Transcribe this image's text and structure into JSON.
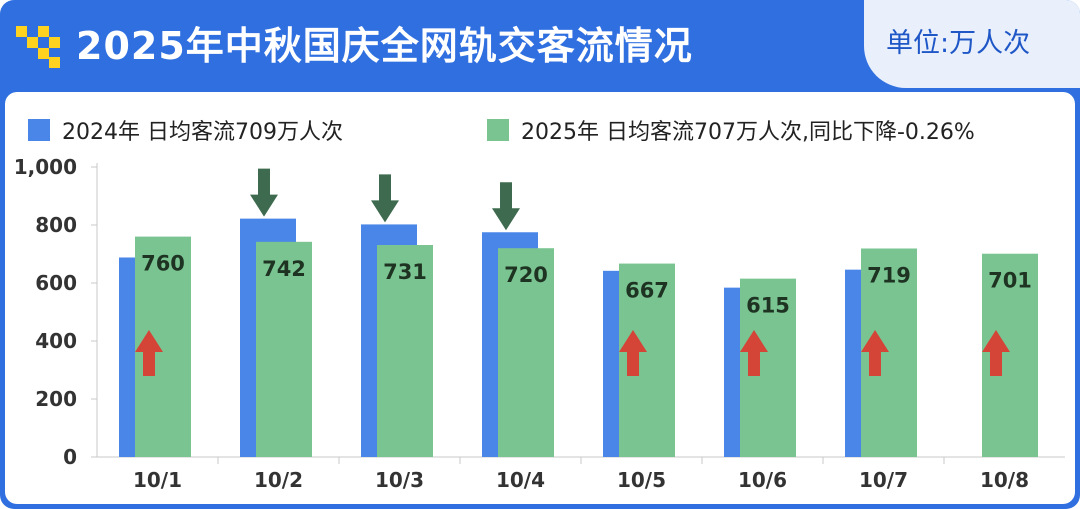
{
  "header": {
    "title": "2025年中秋国庆全网轨交客流情况",
    "unit": "单位:万人次"
  },
  "colors": {
    "frame": "#2f6fe0",
    "series_2024": "#4a86e8",
    "series_2025": "#7ac492",
    "arrow_down": "#3e6b4f",
    "arrow_up": "#e0322a"
  },
  "legend": [
    {
      "series": 0,
      "text": "2024年 日均客流709万人次"
    },
    {
      "series": 1,
      "text": "2025年 日均客流707万人次,同比下降-0.26%"
    }
  ],
  "chart_data": {
    "type": "bar",
    "categories": [
      "10/1",
      "10/2",
      "10/3",
      "10/4",
      "10/5",
      "10/6",
      "10/7",
      "10/8"
    ],
    "series": [
      {
        "name": "2024年",
        "values": [
          688,
          822,
          802,
          775,
          642,
          584,
          646,
          null
        ]
      },
      {
        "name": "2025年",
        "values": [
          760,
          742,
          731,
          720,
          667,
          615,
          719,
          701
        ]
      }
    ],
    "data_labels": [
      "760",
      "742",
      "731",
      "720",
      "667",
      "615",
      "719",
      "701"
    ],
    "ylim": [
      0,
      1000
    ],
    "yticks": [
      0,
      200,
      400,
      600,
      800,
      1000
    ],
    "ytick_labels": [
      "0",
      "200",
      "400",
      "600",
      "800",
      "1,000"
    ],
    "grid": false,
    "legend_position": "top",
    "annotations": {
      "down_arrow_categories": [
        "10/2",
        "10/3",
        "10/4"
      ],
      "up_arrow_categories": [
        "10/1",
        "10/5",
        "10/6",
        "10/7",
        "10/8"
      ]
    }
  }
}
